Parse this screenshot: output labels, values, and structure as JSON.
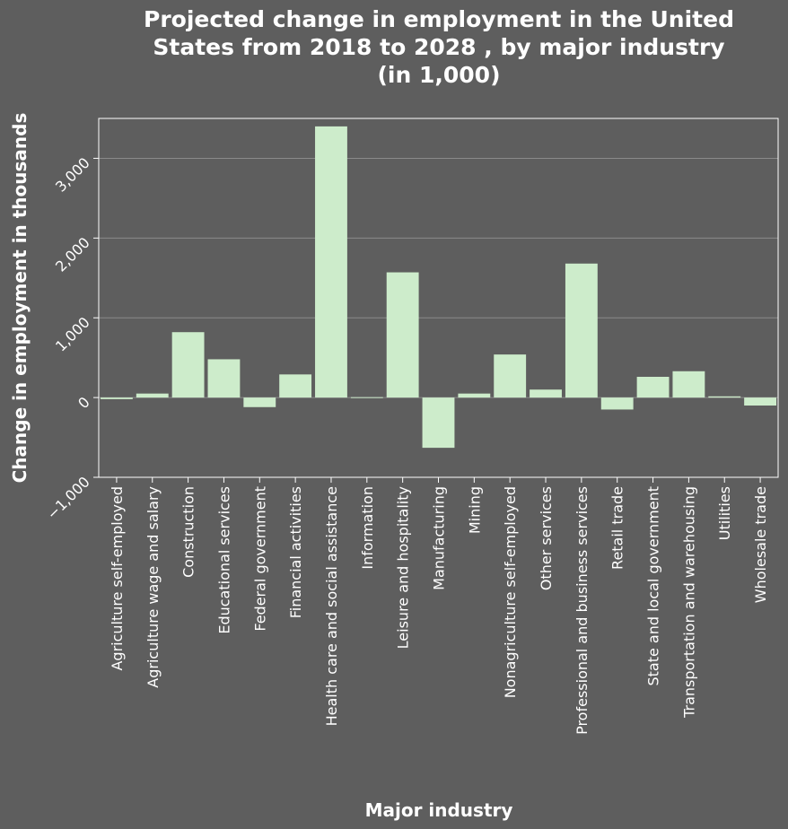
{
  "chart_data": {
    "type": "bar",
    "title_lines": [
      "Projected change in employment in the United",
      "States from 2018 to 2028 , by major industry",
      "(in 1,000)"
    ],
    "xlabel": "Major industry",
    "ylabel": "Change in employment in thousands",
    "ylim": [
      -1000,
      3500
    ],
    "yticks": [
      -1000,
      0,
      1000,
      2000,
      3000
    ],
    "ytick_labels": [
      "−1,000",
      "0",
      "1,000",
      "2,000",
      "3,000"
    ],
    "grid": true,
    "bar_color": "#cdeccb",
    "categories": [
      "Agriculture self-employed",
      "Agriculture wage and salary",
      "Construction",
      "Educational services",
      "Federal government",
      "Financial activities",
      "Health care and social assistance",
      "Information",
      "Leisure and hospitality",
      "Manufacturing",
      "Mining",
      "Nonagriculture self-employed",
      "Other services",
      "Professional and business services",
      "Retail trade",
      "State and local government",
      "Transportation and warehousing",
      "Utilities",
      "Wholesale trade"
    ],
    "values": [
      -20,
      50,
      820,
      480,
      -120,
      290,
      3400,
      5,
      1570,
      -630,
      50,
      540,
      100,
      1680,
      -150,
      260,
      330,
      15,
      -100
    ]
  }
}
